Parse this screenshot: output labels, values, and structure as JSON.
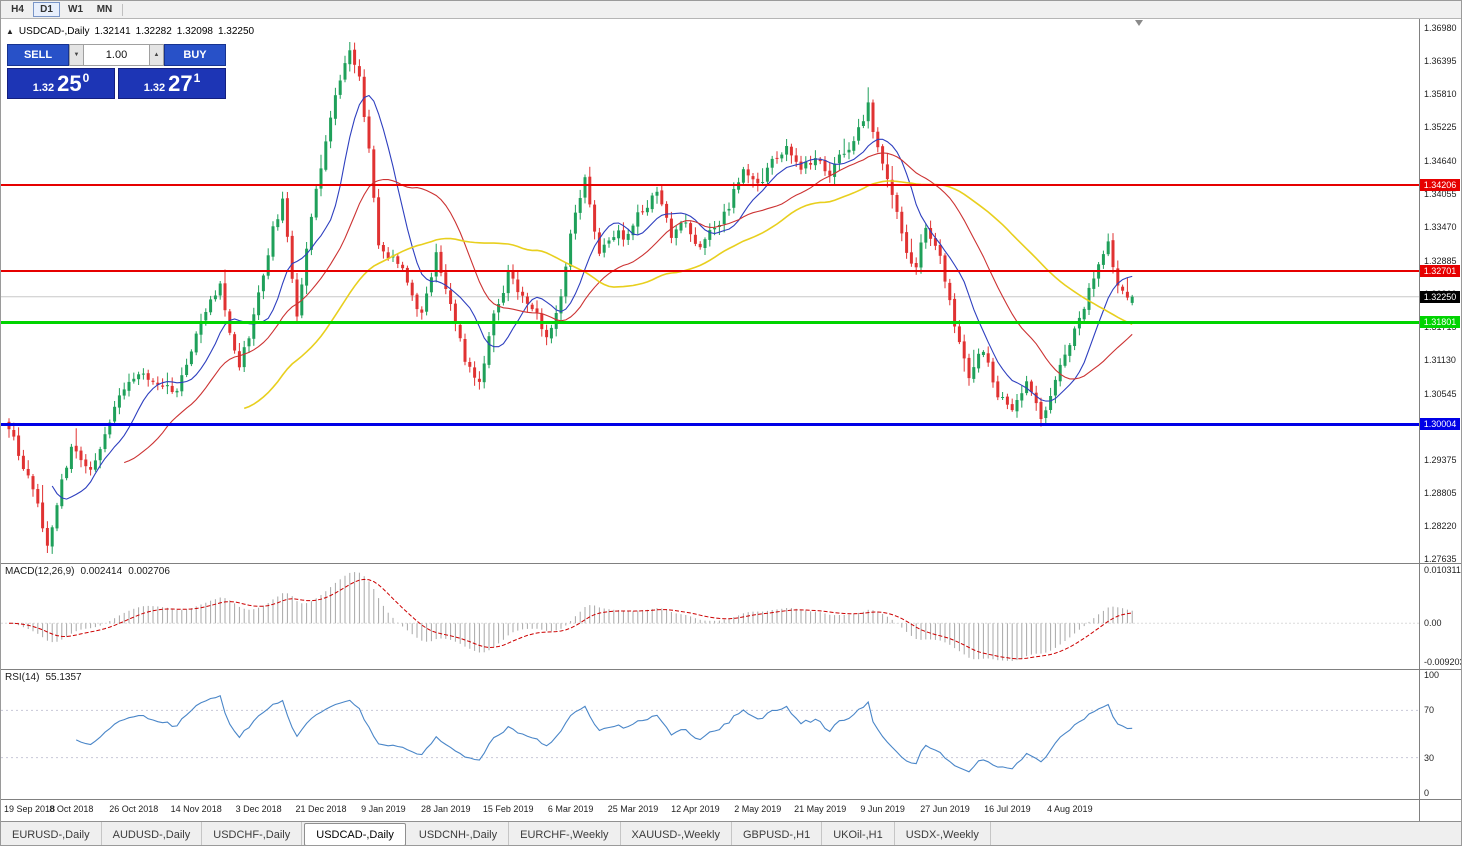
{
  "toolbar": {
    "timeframes": [
      {
        "label": "H4",
        "active": false
      },
      {
        "label": "D1",
        "active": true
      },
      {
        "label": "W1",
        "active": false
      },
      {
        "label": "MN",
        "active": false
      }
    ]
  },
  "chart_header": {
    "collapse_icon": "▲",
    "title": "USDCAD-,Daily",
    "open": "1.32141",
    "high": "1.32282",
    "low": "1.32098",
    "close": "1.32250"
  },
  "icons": {
    "volume_down": "▼",
    "volume_up": "▲"
  },
  "trade_panel": {
    "sell_label": "SELL",
    "buy_label": "BUY",
    "volume": "1.00",
    "sell_price": {
      "base": "1.32",
      "pips": "25",
      "frac": "0"
    },
    "buy_price": {
      "base": "1.32",
      "pips": "27",
      "frac": "1"
    }
  },
  "indicators": {
    "macd": {
      "label": "MACD(12,26,9)",
      "value_main": "0.002414",
      "value_signal": "0.002706",
      "scale": [
        "0.010311",
        "0.00",
        "-0.0092030"
      ]
    },
    "rsi": {
      "label": "RSI(14)",
      "value": "55.1357",
      "scale": [
        "100",
        "70",
        "30",
        "0"
      ]
    }
  },
  "price_scale": [
    "1.36980",
    "1.36395",
    "1.35810",
    "1.35225",
    "1.34640",
    "1.34055",
    "1.33470",
    "1.32885",
    "1.32300",
    "1.31715",
    "1.31130",
    "1.30545",
    "1.29960",
    "1.29375",
    "1.28805",
    "1.28220",
    "1.27635"
  ],
  "levels": [
    {
      "label": "1.34206",
      "price": 1.34206,
      "color": "#e60000",
      "type": "hline",
      "width": 2
    },
    {
      "label": "1.32701",
      "price": 1.32701,
      "color": "#e60000",
      "type": "hline",
      "width": 2
    },
    {
      "label": "1.32250",
      "price": 1.3225,
      "color": "#000000",
      "type": "current",
      "width": 1
    },
    {
      "label": "1.31801",
      "price": 1.31801,
      "color": "#00d400",
      "type": "hline",
      "width": 3
    },
    {
      "label": "1.30004",
      "price": 1.30004,
      "color": "#0000e6",
      "type": "hline",
      "width": 3
    }
  ],
  "date_axis": [
    "19 Sep 2018",
    "8 Oct 2018",
    "26 Oct 2018",
    "14 Nov 2018",
    "3 Dec 2018",
    "21 Dec 2018",
    "9 Jan 2019",
    "28 Jan 2019",
    "15 Feb 2019",
    "6 Mar 2019",
    "25 Mar 2019",
    "12 Apr 2019",
    "2 May 2019",
    "21 May 2019",
    "9 Jun 2019",
    "27 Jun 2019",
    "16 Jul 2019",
    "4 Aug 2019"
  ],
  "tabs": [
    {
      "label": "EURUSD-,Daily",
      "active": false
    },
    {
      "label": "AUDUSD-,Daily",
      "active": false
    },
    {
      "label": "USDCHF-,Daily",
      "active": false
    },
    {
      "label": "USDCAD-,Daily",
      "active": true
    },
    {
      "label": "USDCNH-,Daily",
      "active": false
    },
    {
      "label": "EURCHF-,Weekly",
      "active": false
    },
    {
      "label": "XAUUSD-,Weekly",
      "active": false
    },
    {
      "label": "GBPUSD-,H1",
      "active": false
    },
    {
      "label": "UKOil-,H1",
      "active": false
    },
    {
      "label": "USDX-,Weekly",
      "active": false
    }
  ],
  "colors": {
    "candle_up": "#1fa05a",
    "candle_down": "#e03232",
    "ma_fast": "#2e3fbf",
    "ma_mid": "#cc3333",
    "ma_slow": "#e8cf1e",
    "macd_hist": "#a8a8a8",
    "macd_signal": "#cc0000",
    "rsi_line": "#4a86c8",
    "current_price_line": "#c8c8c8",
    "trade_button": "#2851c8",
    "trade_price_bg": "#1d35b5"
  },
  "chart_data": {
    "type": "candlestick",
    "symbol": "USDCAD-",
    "timeframe": "Daily",
    "candle_count": 235,
    "last_ohlc": {
      "open": 1.32141,
      "high": 1.32282,
      "low": 1.32098,
      "close": 1.3225
    },
    "price_range": {
      "min": 1.2757,
      "max": 1.3713
    },
    "close_anchors": [
      [
        0,
        1.2985
      ],
      [
        4,
        1.2915
      ],
      [
        8,
        1.279
      ],
      [
        13,
        1.2965
      ],
      [
        17,
        1.2935
      ],
      [
        22,
        1.303
      ],
      [
        27,
        1.309
      ],
      [
        31,
        1.3065
      ],
      [
        35,
        1.306
      ],
      [
        40,
        1.318
      ],
      [
        44,
        1.3245
      ],
      [
        48,
        1.3095
      ],
      [
        52,
        1.322
      ],
      [
        55,
        1.334
      ],
      [
        57,
        1.339
      ],
      [
        60,
        1.319
      ],
      [
        64,
        1.342
      ],
      [
        68,
        1.359
      ],
      [
        71,
        1.365
      ],
      [
        73,
        1.362
      ],
      [
        75,
        1.348
      ],
      [
        77,
        1.331
      ],
      [
        80,
        1.329
      ],
      [
        83,
        1.325
      ],
      [
        86,
        1.3195
      ],
      [
        89,
        1.3295
      ],
      [
        92,
        1.321
      ],
      [
        95,
        1.312
      ],
      [
        98,
        1.307
      ],
      [
        101,
        1.319
      ],
      [
        104,
        1.327
      ],
      [
        107,
        1.323
      ],
      [
        110,
        1.319
      ],
      [
        112,
        1.3155
      ],
      [
        115,
        1.323
      ],
      [
        118,
        1.338
      ],
      [
        120,
        1.344
      ],
      [
        123,
        1.331
      ],
      [
        126,
        1.334
      ],
      [
        129,
        1.333
      ],
      [
        132,
        1.338
      ],
      [
        135,
        1.3415
      ],
      [
        138,
        1.333
      ],
      [
        141,
        1.335
      ],
      [
        144,
        1.331
      ],
      [
        147,
        1.335
      ],
      [
        150,
        1.3385
      ],
      [
        153,
        1.345
      ],
      [
        156,
        1.342
      ],
      [
        159,
        1.346
      ],
      [
        162,
        1.348
      ],
      [
        165,
        1.345
      ],
      [
        168,
        1.347
      ],
      [
        171,
        1.344
      ],
      [
        174,
        1.348
      ],
      [
        177,
        1.352
      ],
      [
        179,
        1.356
      ],
      [
        181,
        1.348
      ],
      [
        184,
        1.34
      ],
      [
        187,
        1.329
      ],
      [
        189,
        1.327
      ],
      [
        191,
        1.335
      ],
      [
        194,
        1.329
      ],
      [
        197,
        1.318
      ],
      [
        200,
        1.309
      ],
      [
        203,
        1.313
      ],
      [
        206,
        1.306
      ],
      [
        209,
        1.304
      ],
      [
        212,
        1.307
      ],
      [
        215,
        1.302
      ],
      [
        218,
        1.307
      ],
      [
        221,
        1.315
      ],
      [
        224,
        1.321
      ],
      [
        227,
        1.329
      ],
      [
        229,
        1.333
      ],
      [
        231,
        1.324
      ],
      [
        234,
        1.3225
      ]
    ],
    "moving_averages": [
      {
        "period": 10,
        "color": "#2e3fbf"
      },
      {
        "period": 25,
        "color": "#cc3333"
      },
      {
        "period": 50,
        "color": "#e8cf1e"
      }
    ],
    "macd": {
      "fast": 12,
      "slow": 26,
      "signal": 9
    },
    "rsi": {
      "period": 14
    }
  }
}
